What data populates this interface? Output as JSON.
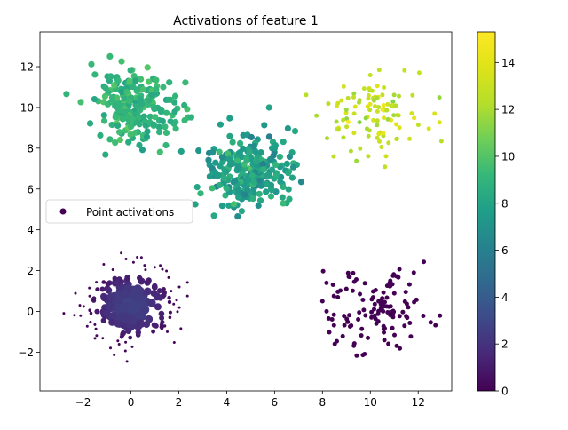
{
  "chart_data": {
    "type": "scatter",
    "title": "Activations of feature 1",
    "xlabel": "",
    "ylabel": "",
    "xlim": [
      -3.8,
      13.4
    ],
    "ylim": [
      -3.9,
      13.7
    ],
    "xticks": [
      -2,
      0,
      2,
      4,
      6,
      8,
      10,
      12
    ],
    "yticks": [
      -2,
      0,
      2,
      4,
      6,
      8,
      10,
      12
    ],
    "grid": false,
    "legend": {
      "label": "Point activations",
      "location": "center-left"
    },
    "colorbar": {
      "colormap": "viridis",
      "range": [
        0,
        15.3
      ],
      "ticks": [
        0,
        2,
        4,
        6,
        8,
        10,
        12,
        14
      ]
    },
    "clusters": [
      {
        "center": [
          0.2,
          10.0
        ],
        "spread": [
          0.9,
          0.9
        ],
        "count": 230,
        "activation": 9.0,
        "activation_range": [
          7.8,
          10.4
        ],
        "size": "medium"
      },
      {
        "center": [
          4.9,
          6.9
        ],
        "spread": [
          0.85,
          0.85
        ],
        "count": 270,
        "activation": 7.8,
        "activation_range": [
          5.8,
          10.0
        ],
        "size": "medium"
      },
      {
        "center": [
          10.1,
          9.7
        ],
        "spread": [
          1.0,
          1.0
        ],
        "count": 110,
        "activation": 12.8,
        "activation_range": [
          11.2,
          15.3
        ],
        "size": "small"
      },
      {
        "center": [
          0.0,
          0.3
        ],
        "spread": [
          1.0,
          1.0
        ],
        "count": 230,
        "activation": 0.8,
        "activation_range": [
          0.0,
          3.0
        ],
        "size": "variable"
      },
      {
        "center": [
          10.3,
          0.0
        ],
        "spread": [
          1.0,
          1.0
        ],
        "count": 130,
        "activation": 0.0,
        "activation_range": [
          0.0,
          0.0
        ],
        "size": "small"
      }
    ]
  }
}
